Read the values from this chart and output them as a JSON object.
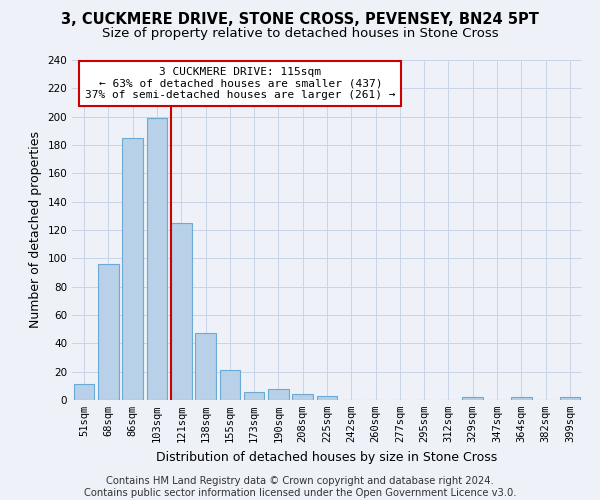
{
  "title1": "3, CUCKMERE DRIVE, STONE CROSS, PEVENSEY, BN24 5PT",
  "title2": "Size of property relative to detached houses in Stone Cross",
  "xlabel": "Distribution of detached houses by size in Stone Cross",
  "ylabel": "Number of detached properties",
  "bar_color": "#b8d0e8",
  "bar_edge_color": "#6aaad4",
  "annotation_line_color": "#cc0000",
  "annotation_box_edgecolor": "#cc0000",
  "annotation_text_line1": "3 CUCKMERE DRIVE: 115sqm",
  "annotation_text_line2": "← 63% of detached houses are smaller (437)",
  "annotation_text_line3": "37% of semi-detached houses are larger (261) →",
  "categories": [
    "51sqm",
    "68sqm",
    "86sqm",
    "103sqm",
    "121sqm",
    "138sqm",
    "155sqm",
    "173sqm",
    "190sqm",
    "208sqm",
    "225sqm",
    "242sqm",
    "260sqm",
    "277sqm",
    "295sqm",
    "312sqm",
    "329sqm",
    "347sqm",
    "364sqm",
    "382sqm",
    "399sqm"
  ],
  "values": [
    11,
    96,
    185,
    199,
    125,
    47,
    21,
    6,
    8,
    4,
    3,
    0,
    0,
    0,
    0,
    0,
    2,
    0,
    2,
    0,
    2
  ],
  "property_bar_index": 4,
  "ylim": [
    0,
    240
  ],
  "yticks": [
    0,
    20,
    40,
    60,
    80,
    100,
    120,
    140,
    160,
    180,
    200,
    220,
    240
  ],
  "bg_color": "#eef2f8",
  "grid_color": "#c8d4e8",
  "footer1": "Contains HM Land Registry data © Crown copyright and database right 2024.",
  "footer2": "Contains public sector information licensed under the Open Government Licence v3.0.",
  "title_fontsize": 10.5,
  "subtitle_fontsize": 9.5,
  "tick_fontsize": 7.5,
  "ylabel_fontsize": 9,
  "xlabel_fontsize": 9,
  "footer_fontsize": 7.2,
  "annot_fontsize": 8
}
